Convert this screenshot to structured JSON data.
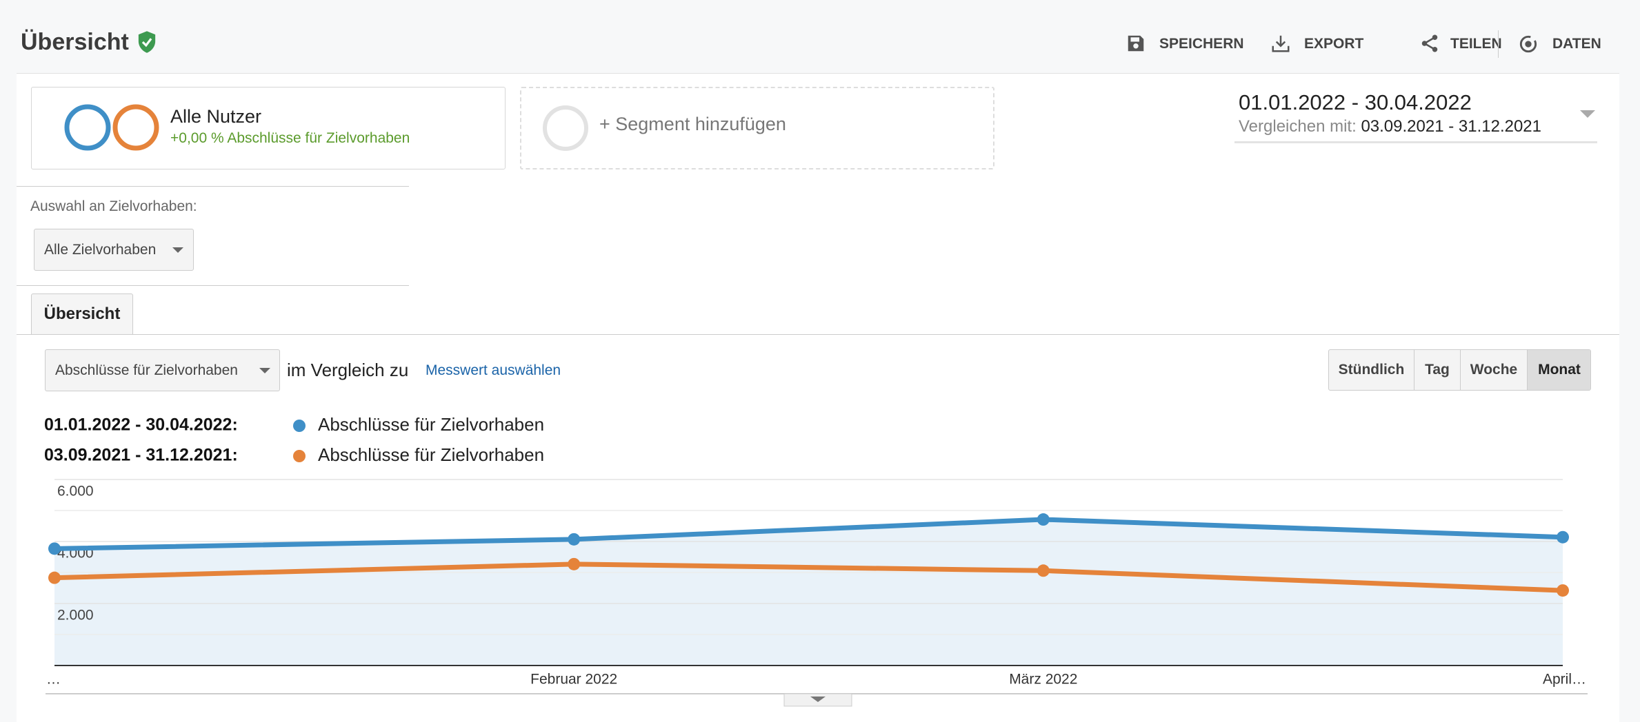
{
  "header": {
    "title": "Übersicht",
    "actions": [
      "SPEICHERN",
      "EXPORT",
      "TEILEN",
      "DATEN"
    ]
  },
  "segments": [
    {
      "name": "Alle Nutzer",
      "detail": "+0,00 % Abschlüsse für Zielvorhaben"
    },
    {
      "name": "+ Segment hinzufügen"
    }
  ],
  "date_range": {
    "current": "01.01.2022 - 30.04.2022",
    "compare_label": "Vergleichen mit:",
    "compare": "03.09.2021 - 31.12.2021"
  },
  "goal_selection": {
    "label": "Auswahl an Zielvorhaben:",
    "value": "Alle Zielvorhaben"
  },
  "tabs": [
    "Übersicht"
  ],
  "metric": {
    "value": "Abschlüsse für Zielvorhaben",
    "compare_text": "im Vergleich zu",
    "select_link": "Messwert auswählen"
  },
  "granularity": {
    "options": [
      "Stündlich",
      "Tag",
      "Woche",
      "Monat"
    ],
    "active": 3
  },
  "chart_data": {
    "type": "line",
    "categories": [
      "…",
      "Februar 2022",
      "März 2022",
      "April…"
    ],
    "series": [
      {
        "name": "Abschlüsse für Zielvorhaben",
        "period": "01.01.2022 - 30.04.2022:",
        "color": "#3f8fc7",
        "values": [
          3770,
          4070,
          4710,
          4140
        ]
      },
      {
        "name": "Abschlüsse für Zielvorhaben",
        "period": "03.09.2021 - 31.12.2021:",
        "color": "#e5833a",
        "values": [
          2830,
          3270,
          3060,
          2420
        ]
      }
    ],
    "ylim": [
      0,
      6000
    ],
    "yticks": [
      {
        "value": 2000,
        "label": "2.000"
      },
      {
        "value": 4000,
        "label": "4.000"
      },
      {
        "value": 6000,
        "label": "6.000"
      }
    ],
    "minor_yticks": [
      1000,
      3000,
      5000
    ],
    "grid": true,
    "area": true
  }
}
